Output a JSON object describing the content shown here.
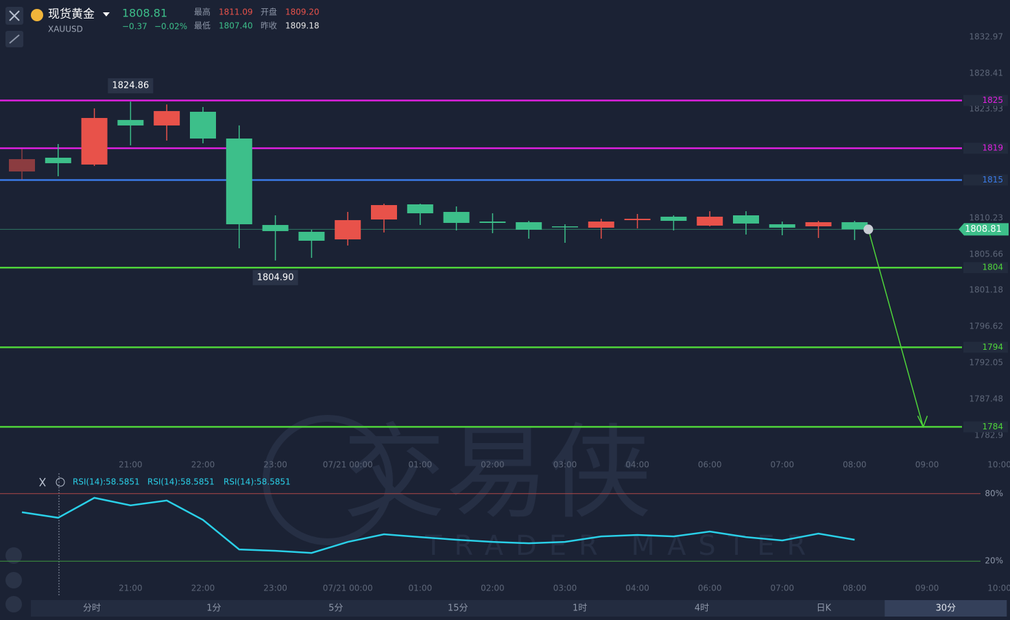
{
  "header": {
    "name": "现货黄金",
    "symbol": "XAUUSD",
    "price": "1808.81",
    "change": "−0.37",
    "change_pct": "−0.02%",
    "stats": [
      {
        "label": "最高",
        "value": "1811.09"
      },
      {
        "label": "开盘",
        "value": "1809.20"
      },
      {
        "label": "最低",
        "value": "1807.40"
      },
      {
        "label": "昨收",
        "value": "1809.18"
      }
    ]
  },
  "chart_data": [
    {
      "type": "candlestick",
      "categories": [
        null,
        null,
        null,
        "21:00",
        null,
        "22:00",
        null,
        "23:00",
        null,
        "07/21 00:00",
        null,
        "01:00",
        null,
        "02:00",
        null,
        "03:00",
        null,
        "04:00",
        null,
        "06:00",
        null,
        "07:00",
        null,
        "08:00",
        null,
        "09:00",
        null,
        "10:00"
      ],
      "open": [
        1816.08,
        1817.81,
        1816.95,
        1822.55,
        1821.86,
        1823.58,
        1820.22,
        1809.36,
        1808.5,
        1807.55,
        1810.05,
        1811.95,
        1811.0,
        1809.79,
        1809.71,
        1809.19,
        1809.02,
        1809.97,
        1810.4,
        1809.28,
        1810.57,
        1809.45,
        1809.19,
        1809.71,
        null,
        null,
        null,
        null
      ],
      "high": [
        1818.93,
        1819.53,
        1824.01,
        1824.86,
        1824.5,
        1824.18,
        1821.86,
        1810.57,
        1808.76,
        1811.0,
        1812.03,
        1812.03,
        1811.69,
        1810.83,
        1809.88,
        1809.45,
        1810.14,
        1810.74,
        1810.57,
        1811.09,
        1811.09,
        1809.79,
        1809.88,
        1809.88,
        null,
        null,
        null,
        null
      ],
      "low": [
        1815.05,
        1815.48,
        1816.77,
        1819.36,
        1819.96,
        1819.62,
        1806.43,
        1804.9,
        1805.23,
        1806.78,
        1808.42,
        1809.36,
        1808.67,
        1808.33,
        1807.64,
        1807.12,
        1807.64,
        1808.93,
        1808.67,
        1809.19,
        1808.16,
        1808.07,
        1807.73,
        1807.47,
        null,
        null,
        null,
        null
      ],
      "close": [
        1817.63,
        1817.12,
        1822.8,
        1821.86,
        1823.67,
        1820.22,
        1809.45,
        1808.59,
        1807.38,
        1809.97,
        1811.86,
        1810.83,
        1809.62,
        1809.62,
        1808.76,
        1809.11,
        1809.79,
        1810.14,
        1809.88,
        1810.4,
        1809.54,
        1809.02,
        1809.71,
        1808.81,
        null,
        null,
        null,
        null
      ],
      "up_color": "#e8524a",
      "down_color": "#3dbf8a",
      "ylim": [
        1780.76,
        1837.62
      ],
      "yticks": [
        1832.97,
        1828.41,
        1823.93,
        1810.23,
        1805.66,
        1801.18,
        1796.62,
        1792.05,
        1787.48,
        1782.9
      ],
      "levels": [
        {
          "value": 1825,
          "color": "#e020e0"
        },
        {
          "value": 1819,
          "color": "#e020e0"
        },
        {
          "value": 1815,
          "color": "#3b7be8"
        },
        {
          "value": 1804,
          "color": "#4fd63a"
        },
        {
          "value": 1794,
          "color": "#4fd63a"
        },
        {
          "value": 1784,
          "color": "#4fd63a"
        }
      ],
      "last": 1808.81,
      "annotations": [
        {
          "value": 1824.86,
          "label": "1824.86"
        },
        {
          "value": 1804.9,
          "label": "1804.90"
        }
      ]
    },
    {
      "type": "line",
      "categories": [
        null,
        null,
        null,
        "21:00",
        null,
        "22:00",
        null,
        "23:00",
        null,
        "07/21 00:00",
        null,
        "01:00",
        null,
        "02:00",
        null,
        "03:00",
        null,
        "04:00",
        null,
        "06:00",
        null,
        "07:00",
        null,
        "08:00",
        null,
        "09:00",
        null,
        "10:00"
      ],
      "series": [
        {
          "name": "RSI(14):58.5851",
          "color": "#2ad0e8",
          "values": [
            63.5,
            58.59,
            76.3,
            69.6,
            73.9,
            56.7,
            30.4,
            29.2,
            27.3,
            37.1,
            43.9,
            41.4,
            39.0,
            37.1,
            35.9,
            37.1,
            42.0,
            43.3,
            42.0,
            46.3,
            41.4,
            38.4,
            44.5,
            39.0,
            null,
            null,
            null,
            null
          ]
        }
      ],
      "ylim": [
        0,
        100
      ],
      "yticks": [
        {
          "value": 80,
          "label": "80%",
          "color": "#b04848"
        },
        {
          "value": 20,
          "label": "20%",
          "color": "#3f9a3f"
        }
      ]
    }
  ],
  "watermark": {
    "cn": "交易侠",
    "en": "TRADER MASTER"
  },
  "tabs": [
    "分时",
    "1分",
    "5分",
    "15分",
    "1时",
    "4时",
    "日K",
    "30分"
  ],
  "active_tab": 7
}
